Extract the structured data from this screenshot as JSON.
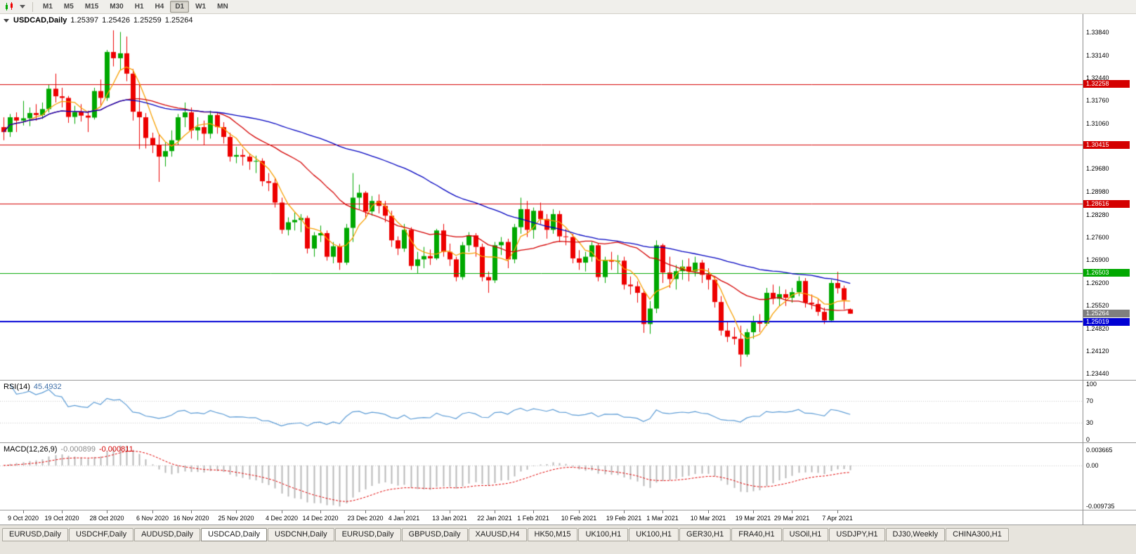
{
  "toolbar": {
    "periods": [
      "M1",
      "M5",
      "M15",
      "M30",
      "H1",
      "H4",
      "D1",
      "W1",
      "MN"
    ],
    "active_period": "D1"
  },
  "chart": {
    "title": "USDCAD,Daily",
    "open": "1.25397",
    "high": "1.25426",
    "low": "1.25259",
    "close": "1.25264"
  },
  "indicators": {
    "rsi": {
      "name": "RSI(14)",
      "value": "45.4932",
      "period": 14,
      "color": "#5b9bd5",
      "levels": [
        {
          "value": 100,
          "label": "100"
        },
        {
          "value": 70,
          "label": "70"
        },
        {
          "value": 30,
          "label": "30"
        },
        {
          "value": 0,
          "label": "0"
        }
      ]
    },
    "macd": {
      "name": "MACD(12,26,9)",
      "main": "-0.000899",
      "signal": "-0.000811",
      "fast": 12,
      "slow": 26,
      "smoothing": 9,
      "histogram_color": "#b9b9b9",
      "signal_color": "#e00000",
      "scale_max": 0.003665,
      "scale_min": -0.009735,
      "axis_labels": [
        {
          "value": 0.003665,
          "label": "0.003665"
        },
        {
          "value": 0,
          "label": "0.00"
        },
        {
          "value": -0.009735,
          "label": "-0.009735"
        }
      ]
    }
  },
  "chart_data": {
    "type": "candlestick",
    "symbol": "USDCAD",
    "timeframe": "Daily",
    "up_color": "#00a800",
    "down_color": "#ed0000",
    "y_axis": {
      "price_top": 1.3384,
      "price_bottom": 1.2344,
      "ticks": [
        "1.33840",
        "1.33140",
        "1.32440",
        "1.31760",
        "1.31060",
        "1.29680",
        "1.28980",
        "1.28280",
        "1.27600",
        "1.26900",
        "1.26200",
        "1.25520",
        "1.24820",
        "1.24120",
        "1.23440"
      ]
    },
    "x_axis": {
      "labels": [
        {
          "bar": 3,
          "text": "9 Oct 2020"
        },
        {
          "bar": 9,
          "text": "19 Oct 2020"
        },
        {
          "bar": 16,
          "text": "28 Oct 2020"
        },
        {
          "bar": 23,
          "text": "6 Nov 2020"
        },
        {
          "bar": 29,
          "text": "16 Nov 2020"
        },
        {
          "bar": 36,
          "text": "25 Nov 2020"
        },
        {
          "bar": 43,
          "text": "4 Dec 2020"
        },
        {
          "bar": 49,
          "text": "14 Dec 2020"
        },
        {
          "bar": 56,
          "text": "23 Dec 2020"
        },
        {
          "bar": 62,
          "text": "4 Jan 2021"
        },
        {
          "bar": 69,
          "text": "13 Jan 2021"
        },
        {
          "bar": 76,
          "text": "22 Jan 2021"
        },
        {
          "bar": 82,
          "text": "1 Feb 2021"
        },
        {
          "bar": 89,
          "text": "10 Feb 2021"
        },
        {
          "bar": 96,
          "text": "19 Feb 2021"
        },
        {
          "bar": 102,
          "text": "1 Mar 2021"
        },
        {
          "bar": 109,
          "text": "10 Mar 2021"
        },
        {
          "bar": 116,
          "text": "19 Mar 2021"
        },
        {
          "bar": 122,
          "text": "29 Mar 2021"
        },
        {
          "bar": 129,
          "text": "7 Apr 2021"
        }
      ]
    },
    "levels": [
      {
        "value": 1.32258,
        "label": "1.32258",
        "color": "#d40000",
        "line_width": 1
      },
      {
        "value": 1.30415,
        "label": "1.30415",
        "color": "#d40000",
        "line_width": 1
      },
      {
        "value": 1.28616,
        "label": "1.28616",
        "color": "#d40000",
        "line_width": 1
      },
      {
        "value": 1.26503,
        "label": "1.26503",
        "color": "#00a800",
        "line_width": 1
      },
      {
        "value": 1.25019,
        "label": "1.25019",
        "color": "#0000d4",
        "line_width": 2
      }
    ],
    "current_price": {
      "value": 1.25264,
      "label": "1.25264",
      "color": "#7f7f7f"
    },
    "moving_averages": [
      {
        "period": 5,
        "color": "#f7a000"
      },
      {
        "period": 20,
        "color": "#d40000"
      },
      {
        "period": 50,
        "color": "#0000c0"
      }
    ],
    "candles": [
      [
        1.3095,
        1.3125,
        1.3055,
        1.308
      ],
      [
        1.308,
        1.3135,
        1.3065,
        1.3125
      ],
      [
        1.3125,
        1.314,
        1.308,
        1.3115
      ],
      [
        1.3115,
        1.3175,
        1.31,
        1.3122
      ],
      [
        1.3122,
        1.3155,
        1.3098,
        1.3138
      ],
      [
        1.3138,
        1.3165,
        1.3115,
        1.3132
      ],
      [
        1.3132,
        1.317,
        1.312,
        1.315
      ],
      [
        1.315,
        1.3225,
        1.314,
        1.3212
      ],
      [
        1.3212,
        1.3258,
        1.317,
        1.3189
      ],
      [
        1.3189,
        1.3215,
        1.3155,
        1.3184
      ],
      [
        1.3184,
        1.319,
        1.3108,
        1.3126
      ],
      [
        1.3126,
        1.316,
        1.3105,
        1.3141
      ],
      [
        1.3141,
        1.3165,
        1.3112,
        1.313
      ],
      [
        1.313,
        1.3145,
        1.308,
        1.3124
      ],
      [
        1.3124,
        1.3215,
        1.3118,
        1.3205
      ],
      [
        1.3205,
        1.324,
        1.316,
        1.3184
      ],
      [
        1.3184,
        1.333,
        1.3175,
        1.3324
      ],
      [
        1.3324,
        1.339,
        1.328,
        1.3305
      ],
      [
        1.3305,
        1.3385,
        1.327,
        1.332
      ],
      [
        1.332,
        1.3371,
        1.3235,
        1.3258
      ],
      [
        1.3258,
        1.3272,
        1.3115,
        1.3142
      ],
      [
        1.3142,
        1.3228,
        1.3028,
        1.3125
      ],
      [
        1.3125,
        1.3138,
        1.303,
        1.3062
      ],
      [
        1.3062,
        1.3078,
        1.3016,
        1.304
      ],
      [
        1.304,
        1.3072,
        1.2928,
        1.3005
      ],
      [
        1.3005,
        1.3048,
        1.2975,
        1.3022
      ],
      [
        1.3022,
        1.3085,
        1.3005,
        1.3055
      ],
      [
        1.3055,
        1.3135,
        1.304,
        1.3125
      ],
      [
        1.3125,
        1.317,
        1.3095,
        1.314
      ],
      [
        1.314,
        1.3155,
        1.306,
        1.3085
      ],
      [
        1.3085,
        1.3125,
        1.3055,
        1.3095
      ],
      [
        1.3095,
        1.3115,
        1.304,
        1.3075
      ],
      [
        1.3075,
        1.3145,
        1.306,
        1.3132
      ],
      [
        1.3132,
        1.314,
        1.3075,
        1.3095
      ],
      [
        1.3095,
        1.311,
        1.3045,
        1.3065
      ],
      [
        1.3065,
        1.3078,
        1.299,
        1.3005
      ],
      [
        1.3005,
        1.3035,
        1.2985,
        1.301
      ],
      [
        1.301,
        1.3028,
        1.2978,
        1.3005
      ],
      [
        1.3005,
        1.3015,
        1.2965,
        1.299
      ],
      [
        1.299,
        1.3008,
        1.2955,
        1.2992
      ],
      [
        1.2992,
        1.3,
        1.2915,
        1.293
      ],
      [
        1.293,
        1.2955,
        1.29,
        1.2925
      ],
      [
        1.2925,
        1.294,
        1.285,
        1.2865
      ],
      [
        1.2865,
        1.288,
        1.277,
        1.2782
      ],
      [
        1.2782,
        1.282,
        1.2765,
        1.2805
      ],
      [
        1.2805,
        1.2835,
        1.278,
        1.2812
      ],
      [
        1.2812,
        1.283,
        1.2775,
        1.2818
      ],
      [
        1.2818,
        1.2825,
        1.271,
        1.2725
      ],
      [
        1.2725,
        1.2775,
        1.27,
        1.2765
      ],
      [
        1.2765,
        1.2795,
        1.2745,
        1.2772
      ],
      [
        1.2772,
        1.278,
        1.2688,
        1.27
      ],
      [
        1.27,
        1.2745,
        1.268,
        1.2732
      ],
      [
        1.2732,
        1.274,
        1.266,
        1.2682
      ],
      [
        1.2682,
        1.28,
        1.2675,
        1.2788
      ],
      [
        1.2788,
        1.2955,
        1.2745,
        1.288
      ],
      [
        1.288,
        1.292,
        1.2845,
        1.2895
      ],
      [
        1.2895,
        1.29,
        1.2815,
        1.2838
      ],
      [
        1.2838,
        1.2885,
        1.2825,
        1.287
      ],
      [
        1.287,
        1.289,
        1.2832,
        1.2855
      ],
      [
        1.2855,
        1.287,
        1.2805,
        1.2825
      ],
      [
        1.2825,
        1.284,
        1.273,
        1.275
      ],
      [
        1.275,
        1.2762,
        1.2705,
        1.2725
      ],
      [
        1.2725,
        1.28,
        1.2715,
        1.2782
      ],
      [
        1.2782,
        1.279,
        1.266,
        1.2672
      ],
      [
        1.2672,
        1.2715,
        1.265,
        1.2692
      ],
      [
        1.2692,
        1.273,
        1.2665,
        1.2702
      ],
      [
        1.2702,
        1.2722,
        1.2675,
        1.2695
      ],
      [
        1.2695,
        1.2785,
        1.269,
        1.278
      ],
      [
        1.278,
        1.28,
        1.27,
        1.2715
      ],
      [
        1.2715,
        1.274,
        1.2672,
        1.2692
      ],
      [
        1.2692,
        1.27,
        1.2625,
        1.2638
      ],
      [
        1.2638,
        1.2745,
        1.263,
        1.2735
      ],
      [
        1.2735,
        1.2775,
        1.2715,
        1.2765
      ],
      [
        1.2765,
        1.2772,
        1.27,
        1.273
      ],
      [
        1.273,
        1.274,
        1.2625,
        1.2638
      ],
      [
        1.2638,
        1.2655,
        1.259,
        1.2628
      ],
      [
        1.2628,
        1.2745,
        1.262,
        1.2735
      ],
      [
        1.2735,
        1.276,
        1.2705,
        1.2745
      ],
      [
        1.2745,
        1.2755,
        1.2665,
        1.2692
      ],
      [
        1.2692,
        1.28,
        1.268,
        1.279
      ],
      [
        1.279,
        1.288,
        1.277,
        1.2845
      ],
      [
        1.2845,
        1.287,
        1.276,
        1.2782
      ],
      [
        1.2782,
        1.285,
        1.2755,
        1.284
      ],
      [
        1.284,
        1.2865,
        1.28,
        1.2815
      ],
      [
        1.2815,
        1.283,
        1.2755,
        1.2782
      ],
      [
        1.2782,
        1.2845,
        1.277,
        1.283
      ],
      [
        1.283,
        1.284,
        1.2745,
        1.2762
      ],
      [
        1.2762,
        1.2785,
        1.2735,
        1.276
      ],
      [
        1.276,
        1.277,
        1.268,
        1.2695
      ],
      [
        1.2695,
        1.272,
        1.266,
        1.2682
      ],
      [
        1.2682,
        1.2715,
        1.2655,
        1.27
      ],
      [
        1.27,
        1.2745,
        1.2685,
        1.2735
      ],
      [
        1.2735,
        1.274,
        1.2625,
        1.2638
      ],
      [
        1.2638,
        1.27,
        1.262,
        1.269
      ],
      [
        1.269,
        1.2715,
        1.266,
        1.2685
      ],
      [
        1.2685,
        1.2705,
        1.265,
        1.2688
      ],
      [
        1.2688,
        1.27,
        1.26,
        1.2615
      ],
      [
        1.2615,
        1.264,
        1.2585,
        1.261
      ],
      [
        1.261,
        1.2625,
        1.256,
        1.259
      ],
      [
        1.259,
        1.26,
        1.2468,
        1.2495
      ],
      [
        1.2495,
        1.2565,
        1.2465,
        1.2542
      ],
      [
        1.2542,
        1.275,
        1.2528,
        1.2735
      ],
      [
        1.2735,
        1.274,
        1.262,
        1.2652
      ],
      [
        1.2652,
        1.27,
        1.2605,
        1.2632
      ],
      [
        1.2632,
        1.2675,
        1.26,
        1.2656
      ],
      [
        1.2656,
        1.269,
        1.263,
        1.267
      ],
      [
        1.267,
        1.2695,
        1.2625,
        1.2655
      ],
      [
        1.2655,
        1.27,
        1.264,
        1.2682
      ],
      [
        1.2682,
        1.269,
        1.262,
        1.2645
      ],
      [
        1.2645,
        1.2665,
        1.26,
        1.263
      ],
      [
        1.263,
        1.264,
        1.2545,
        1.2562
      ],
      [
        1.2562,
        1.258,
        1.246,
        1.2475
      ],
      [
        1.2475,
        1.25,
        1.244,
        1.2456
      ],
      [
        1.2456,
        1.2485,
        1.2432,
        1.245
      ],
      [
        1.245,
        1.249,
        1.2365,
        1.2402
      ],
      [
        1.2402,
        1.248,
        1.2395,
        1.247
      ],
      [
        1.247,
        1.252,
        1.245,
        1.25
      ],
      [
        1.25,
        1.2525,
        1.247,
        1.2496
      ],
      [
        1.2496,
        1.2605,
        1.249,
        1.259
      ],
      [
        1.259,
        1.2615,
        1.2555,
        1.2572
      ],
      [
        1.2572,
        1.261,
        1.255,
        1.2586
      ],
      [
        1.2586,
        1.26,
        1.255,
        1.2575
      ],
      [
        1.2575,
        1.2605,
        1.256,
        1.2592
      ],
      [
        1.2592,
        1.264,
        1.258,
        1.2626
      ],
      [
        1.2626,
        1.2635,
        1.2545,
        1.256
      ],
      [
        1.256,
        1.2585,
        1.254,
        1.2556
      ],
      [
        1.2556,
        1.257,
        1.252,
        1.2532
      ],
      [
        1.2532,
        1.2545,
        1.2495,
        1.2506
      ],
      [
        1.2506,
        1.263,
        1.25,
        1.262
      ],
      [
        1.262,
        1.2654,
        1.2588,
        1.2604
      ],
      [
        1.2604,
        1.2612,
        1.254,
        1.2568
      ],
      [
        1.25397,
        1.25426,
        1.25259,
        1.25264
      ]
    ]
  },
  "window_tabs": {
    "items": [
      "EURUSD,Daily",
      "USDCHF,Daily",
      "AUDUSD,Daily",
      "USDCAD,Daily",
      "USDCNH,Daily",
      "EURUSD,Daily",
      "GBPUSD,Daily",
      "XAUUSD,H4",
      "HK50,M15",
      "UK100,H1",
      "UK100,H1",
      "GER30,H1",
      "FRA40,H1",
      "USOil,H1",
      "USDJPY,H1",
      "DJ30,Weekly",
      "CHINA300,H1"
    ],
    "active_index": 3
  }
}
